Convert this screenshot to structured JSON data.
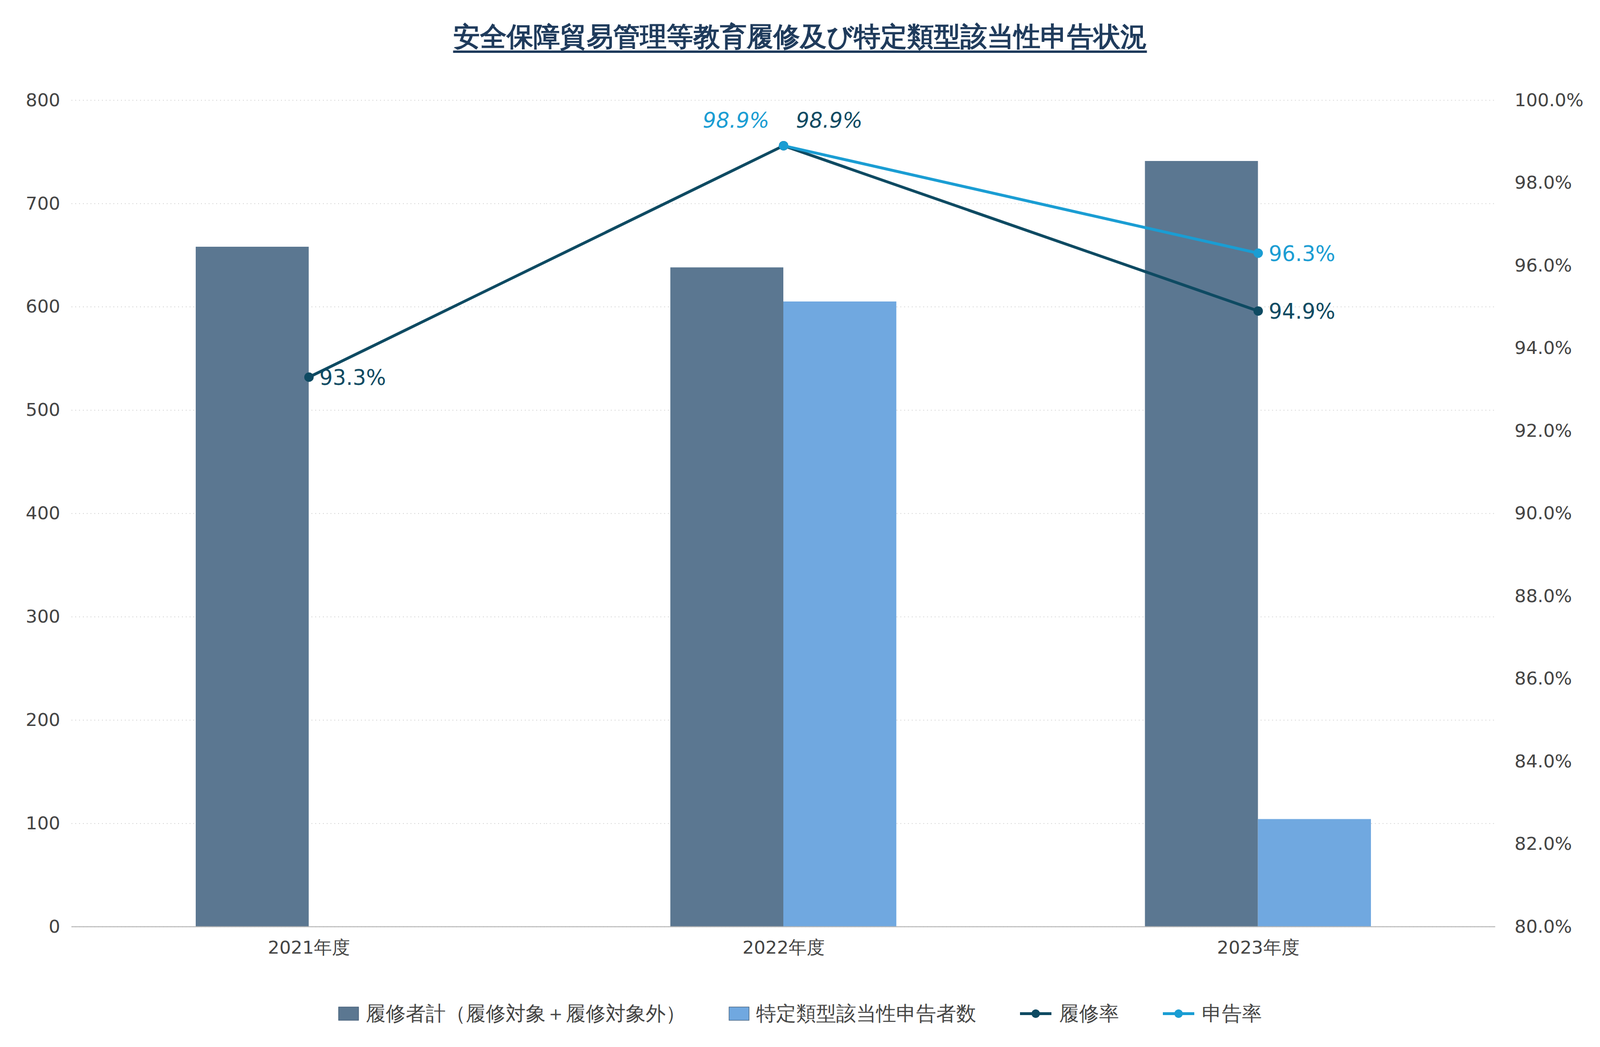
{
  "chart_data": {
    "type": "bar",
    "title": "安全保障貿易管理等教育履修及び特定類型該当性申告状況",
    "categories": [
      "2021年度",
      "2022年度",
      "2023年度"
    ],
    "series": [
      {
        "name": "履修者計（履修対象＋履修対象外）",
        "type": "bar",
        "color": "#5b7791",
        "values": [
          658,
          638,
          741
        ]
      },
      {
        "name": "特定類型該当性申告者数",
        "type": "bar",
        "color": "#70a8e0",
        "values": [
          null,
          605,
          104
        ]
      },
      {
        "name": "履修率",
        "type": "line",
        "axis": "y2",
        "color": "#0e4a62",
        "marker": "circle",
        "values": [
          93.3,
          98.9,
          94.9
        ],
        "value_labels": [
          "93.3%",
          "98.9%",
          "94.9%"
        ]
      },
      {
        "name": "申告率",
        "type": "line",
        "axis": "y2",
        "color": "#1a9dd3",
        "marker": "circle",
        "values": [
          null,
          98.9,
          96.3
        ],
        "value_labels": [
          null,
          "98.9%",
          "96.3%"
        ]
      }
    ],
    "ylim": [
      0,
      800
    ],
    "yticks": [
      0,
      100,
      200,
      300,
      400,
      500,
      600,
      700,
      800
    ],
    "y2lim": [
      80,
      100
    ],
    "y2ticks": [
      {
        "value": 80,
        "label": "80.0%"
      },
      {
        "value": 82,
        "label": "82.0%"
      },
      {
        "value": 84,
        "label": "84.0%"
      },
      {
        "value": 86,
        "label": "86.0%"
      },
      {
        "value": 88,
        "label": "88.0%"
      },
      {
        "value": 90,
        "label": "90.0%"
      },
      {
        "value": 92,
        "label": "92.0%"
      },
      {
        "value": 94,
        "label": "94.0%"
      },
      {
        "value": 96,
        "label": "96.0%"
      },
      {
        "value": 98,
        "label": "98.0%"
      },
      {
        "value": 100,
        "label": "100.0%"
      }
    ],
    "grid": true,
    "legend": "bottom",
    "data_labels": true
  }
}
